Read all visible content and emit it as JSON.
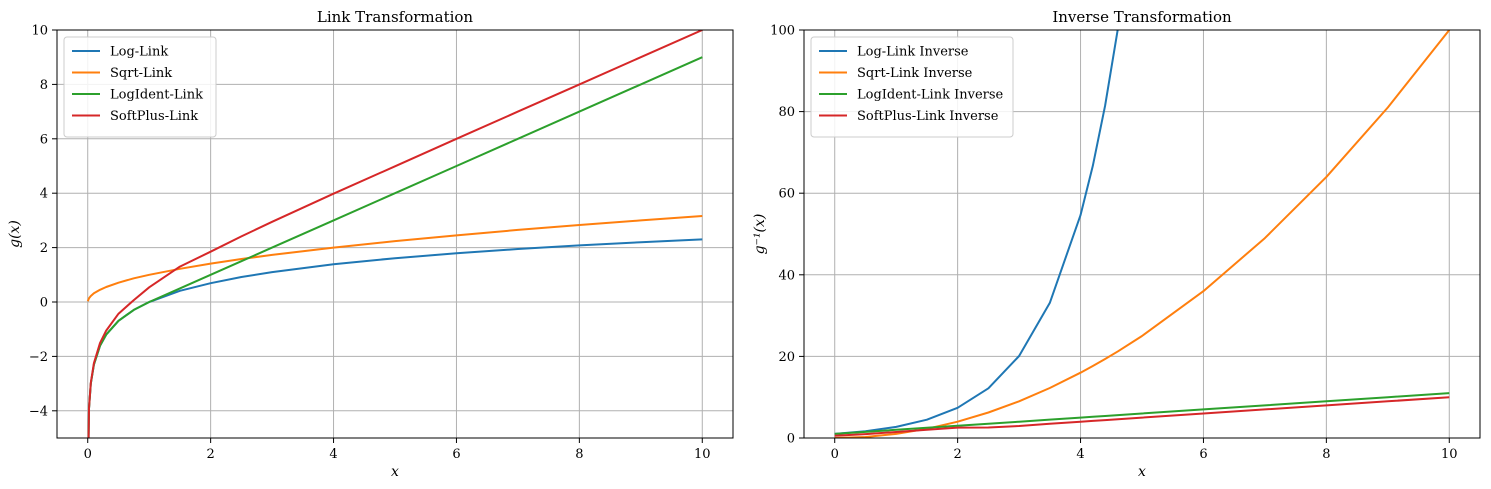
{
  "chart_data": [
    {
      "type": "line",
      "title": "Link Transformation",
      "xlabel": "x",
      "ylabel": "g(x)",
      "xlim": [
        -0.5,
        10.5
      ],
      "ylim": [
        -5,
        10
      ],
      "xticks": [
        0,
        2,
        4,
        6,
        8,
        10
      ],
      "yticks": [
        -4,
        -2,
        0,
        2,
        4,
        6,
        8,
        10
      ],
      "ytick_labels": [
        "−4",
        "−2",
        "0",
        "2",
        "4",
        "6",
        "8",
        "10"
      ],
      "grid": true,
      "legend_position": "top-left",
      "x": [
        0.001,
        0.02,
        0.05,
        0.1,
        0.2,
        0.3,
        0.5,
        0.75,
        1,
        1.5,
        2,
        2.5,
        3,
        4,
        5,
        6,
        7,
        8,
        9,
        10
      ],
      "series": [
        {
          "name": "Log-Link",
          "color": "#1f77b4",
          "values": [
            -6.91,
            -3.91,
            -3.0,
            -2.3,
            -1.61,
            -1.2,
            -0.69,
            -0.29,
            0,
            0.41,
            0.69,
            0.92,
            1.1,
            1.39,
            1.61,
            1.79,
            1.95,
            2.08,
            2.2,
            2.3
          ]
        },
        {
          "name": "Sqrt-Link",
          "color": "#ff7f0e",
          "values": [
            0.03,
            0.14,
            0.22,
            0.32,
            0.45,
            0.55,
            0.71,
            0.87,
            1,
            1.22,
            1.41,
            1.58,
            1.73,
            2,
            2.24,
            2.45,
            2.65,
            2.83,
            3,
            3.16
          ]
        },
        {
          "name": "LogIdent-Link",
          "color": "#2ca02c",
          "values": [
            -6.91,
            -3.91,
            -3.0,
            -2.3,
            -1.61,
            -1.2,
            -0.69,
            -0.29,
            0,
            0.5,
            1,
            1.5,
            2,
            3,
            4,
            5,
            6,
            7,
            8,
            9
          ]
        },
        {
          "name": "SoftPlus-Link",
          "color": "#d62728",
          "values": [
            -6.91,
            -3.9,
            -2.97,
            -2.25,
            -1.51,
            -1.05,
            -0.43,
            0.07,
            0.54,
            1.3,
            1.85,
            2.41,
            2.95,
            3.98,
            4.99,
            6.0,
            7.0,
            8.0,
            9.0,
            10.0
          ]
        }
      ]
    },
    {
      "type": "line",
      "title": "Inverse Transformation",
      "xlabel": "x",
      "ylabel": "g⁻¹(x)",
      "xlim": [
        -0.5,
        10.5
      ],
      "ylim": [
        0,
        100
      ],
      "xticks": [
        0,
        2,
        4,
        6,
        8,
        10
      ],
      "yticks": [
        0,
        20,
        40,
        60,
        80,
        100
      ],
      "ytick_labels": [
        "0",
        "20",
        "40",
        "60",
        "80",
        "100"
      ],
      "grid": true,
      "legend_position": "top-left",
      "x": [
        0,
        0.5,
        1,
        1.5,
        2,
        2.5,
        3,
        3.5,
        4,
        4.2,
        4.4,
        4.61,
        5,
        6,
        7,
        8,
        9,
        10
      ],
      "series": [
        {
          "name": "Log-Link Inverse",
          "color": "#1f77b4",
          "values": [
            1,
            1.65,
            2.72,
            4.48,
            7.39,
            12.18,
            20.09,
            33.12,
            54.6,
            66.69,
            81.45,
            100.5,
            null,
            null,
            null,
            null,
            null,
            null
          ]
        },
        {
          "name": "Sqrt-Link Inverse",
          "color": "#ff7f0e",
          "values": [
            0,
            0.25,
            1,
            2.25,
            4,
            6.25,
            9,
            12.25,
            16,
            17.64,
            19.36,
            21.25,
            25,
            36,
            49,
            64,
            81,
            100
          ]
        },
        {
          "name": "LogIdent-Link Inverse",
          "color": "#2ca02c",
          "values": [
            1,
            1.5,
            2,
            2.5,
            3,
            3.5,
            4,
            4.5,
            5,
            5.2,
            5.4,
            5.61,
            6,
            7,
            8,
            9,
            10,
            11
          ]
        },
        {
          "name": "SoftPlus-Link Inverse",
          "color": "#d62728",
          "values": [
            0.54,
            0.95,
            1.46,
            2.0,
            2.54,
            2.58,
            2.95,
            3.47,
            3.98,
            4.19,
            4.39,
            4.6,
            4.99,
            6.0,
            7.0,
            8.0,
            9.0,
            10.0
          ]
        }
      ]
    }
  ]
}
